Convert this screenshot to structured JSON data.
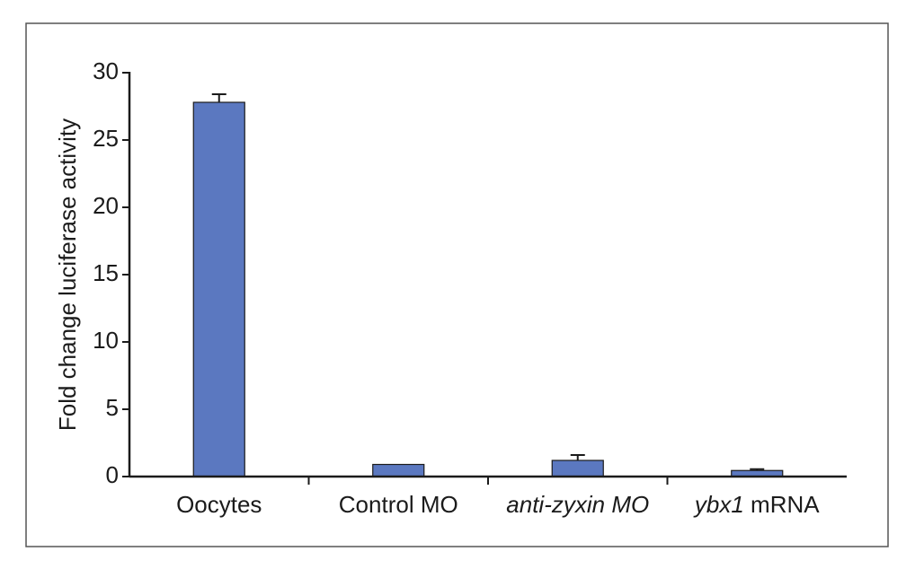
{
  "chart_data": {
    "type": "bar",
    "categories": [
      {
        "parts": [
          {
            "text": "Oocytes",
            "italic": false
          }
        ]
      },
      {
        "parts": [
          {
            "text": "Control MO",
            "italic": false
          }
        ]
      },
      {
        "parts": [
          {
            "text": "anti-zyxin MO",
            "italic": true
          }
        ]
      },
      {
        "parts": [
          {
            "text": "ybx1",
            "italic": true
          },
          {
            "text": " mRNA",
            "italic": false
          }
        ]
      }
    ],
    "values": [
      27.8,
      0.9,
      1.2,
      0.45
    ],
    "errors": [
      0.6,
      0.0,
      0.4,
      0.1
    ],
    "title": "",
    "xlabel": "",
    "ylabel": "Fold change luciferase activity",
    "ylim": [
      0,
      30
    ],
    "yticks": [
      "0",
      "5",
      "10",
      "15",
      "20",
      "25",
      "30"
    ],
    "grid": false,
    "bar_color": "#5b78c0",
    "frame_border_color": "#555555"
  }
}
